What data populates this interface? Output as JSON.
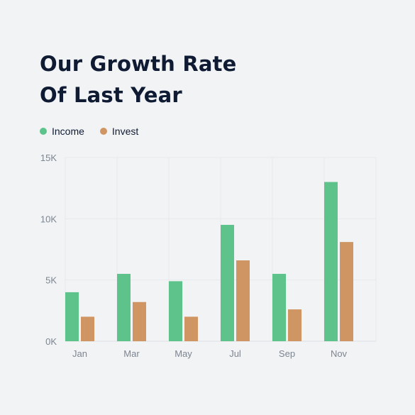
{
  "title_lines": [
    "Our Growth Rate",
    "Of Last Year"
  ],
  "legend": [
    {
      "label": "Income",
      "color": "#5dc38a"
    },
    {
      "label": "Invest",
      "color": "#cf9563"
    }
  ],
  "chart_data": {
    "type": "bar",
    "categories": [
      "Jan",
      "Mar",
      "May",
      "Jul",
      "Sep",
      "Nov"
    ],
    "series": [
      {
        "name": "Income",
        "color": "#5dc38a",
        "values": [
          4000,
          5500,
          4900,
          9500,
          5500,
          13000
        ]
      },
      {
        "name": "Invest",
        "color": "#cf9563",
        "values": [
          2000,
          3200,
          2000,
          6600,
          2600,
          8100
        ]
      }
    ],
    "ylim": [
      0,
      15000
    ],
    "yticks": [
      "0K",
      "5K",
      "10K",
      "15K"
    ],
    "ytick_values": [
      0,
      5000,
      10000,
      15000
    ],
    "grid": true,
    "legend_position": "top-left"
  }
}
